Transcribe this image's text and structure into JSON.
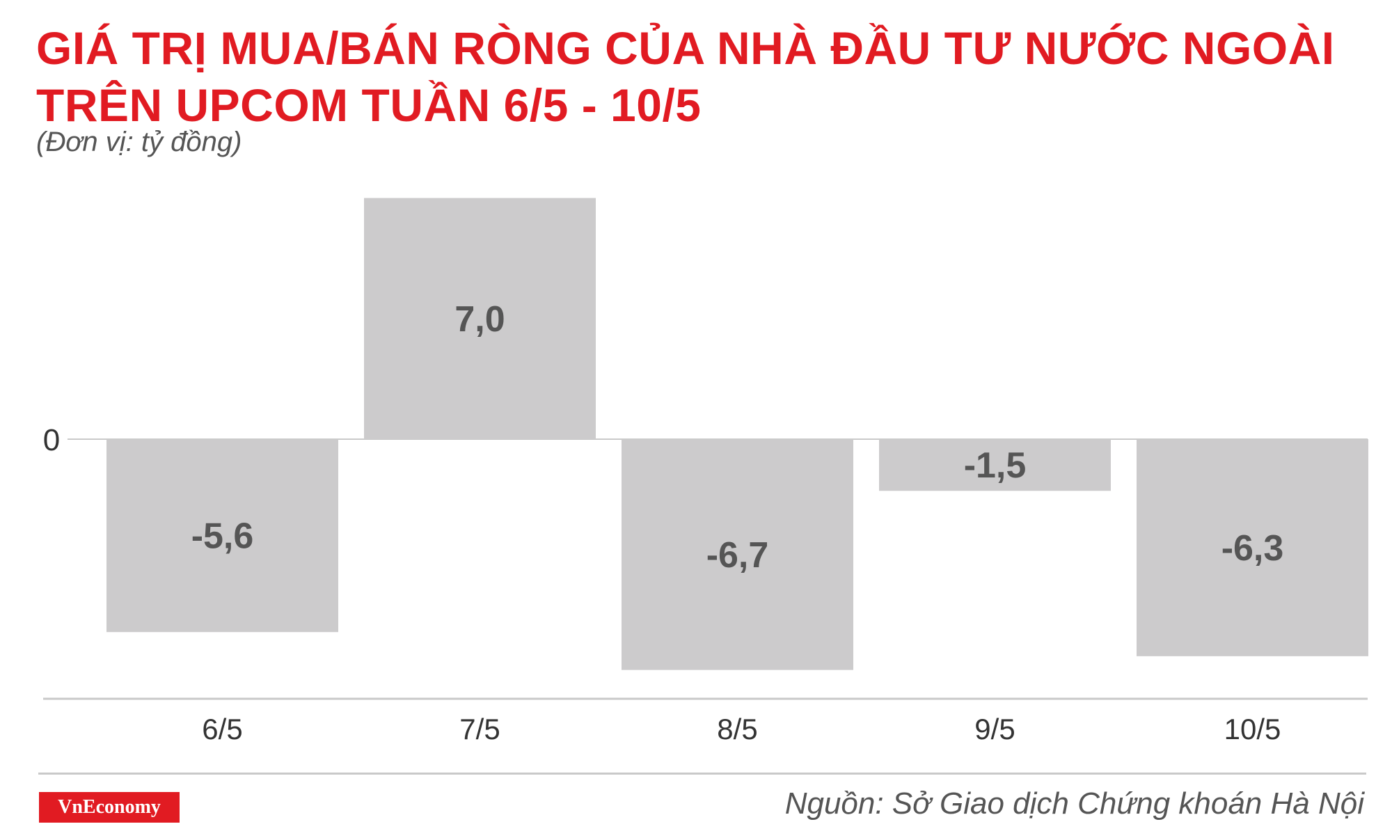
{
  "header": {
    "title_line1": "GIÁ TRỊ MUA/BÁN RÒNG CỦA NHÀ ĐẦU TƯ NƯỚC NGOÀI",
    "title_line2": "TRÊN UPCOM TUẦN 6/5 - 10/5",
    "unit": "(Đơn vị: tỷ đồng)"
  },
  "footer": {
    "logo_text": "VnEconomy",
    "source": "Nguồn: Sở Giao dịch Chứng khoán Hà Nội"
  },
  "colors": {
    "title": "#e11b22",
    "bar": "#cccbcc",
    "value_label": "#555555",
    "axis": "#c9c9c9"
  },
  "chart_data": {
    "type": "bar",
    "categories": [
      "6/5",
      "7/5",
      "8/5",
      "9/5",
      "10/5"
    ],
    "values": [
      -5.6,
      7.0,
      -6.7,
      -1.5,
      -6.3
    ],
    "value_labels": [
      "-5,6",
      "7,0",
      "-6,7",
      "-1,5",
      "-6,3"
    ],
    "zero_label": "0",
    "title": "GIÁ TRỊ MUA/BÁN RÒNG CỦA NHÀ ĐẦU TƯ NƯỚC NGOÀI TRÊN UPCOM TUẦN 6/5 - 10/5",
    "xlabel": "",
    "ylabel": "",
    "ylim": [
      -7.5,
      7.5
    ],
    "grid": false,
    "legend": "none"
  }
}
